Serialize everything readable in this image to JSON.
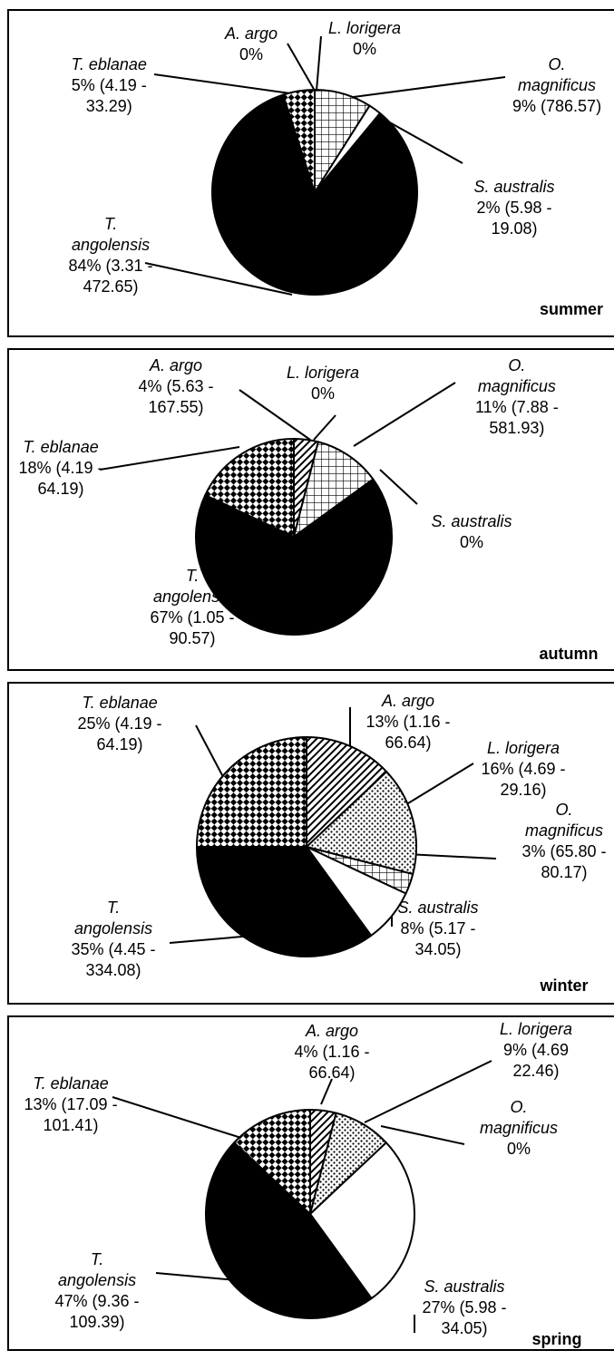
{
  "chart_data": [
    {
      "type": "pie",
      "panel_label": "summer",
      "slices": [
        {
          "name_lines": [
            "A. argo"
          ],
          "value_lines": [
            "0%"
          ],
          "percent": 0,
          "pattern": "diag"
        },
        {
          "name_lines": [
            "L. lorigera"
          ],
          "value_lines": [
            "0%"
          ],
          "percent": 0,
          "pattern": "dots"
        },
        {
          "name_lines": [
            "O.",
            "magnificus"
          ],
          "value_lines": [
            "9% (786.57)"
          ],
          "percent": 9,
          "pattern": "grid"
        },
        {
          "name_lines": [
            "S. australis"
          ],
          "value_lines": [
            "2% (5.98 -",
            "19.08)"
          ],
          "percent": 2,
          "pattern": "white"
        },
        {
          "name_lines": [
            "T.",
            "angolensis"
          ],
          "value_lines": [
            "84% (3.31 -",
            "472.65)"
          ],
          "percent": 84,
          "pattern": "black"
        },
        {
          "name_lines": [
            "T. eblanae"
          ],
          "value_lines": [
            "5% (4.19 -",
            "33.29)"
          ],
          "percent": 5,
          "pattern": "checker"
        }
      ]
    },
    {
      "type": "pie",
      "panel_label": "autumn",
      "slices": [
        {
          "name_lines": [
            "A. argo"
          ],
          "value_lines": [
            "4% (5.63 -",
            "167.55)"
          ],
          "percent": 4,
          "pattern": "diag"
        },
        {
          "name_lines": [
            "L. lorigera"
          ],
          "value_lines": [
            "0%"
          ],
          "percent": 0,
          "pattern": "dots"
        },
        {
          "name_lines": [
            "O.",
            "magnificus"
          ],
          "value_lines": [
            "11% (7.88 -",
            "581.93)"
          ],
          "percent": 11,
          "pattern": "grid"
        },
        {
          "name_lines": [
            "S. australis"
          ],
          "value_lines": [
            "0%"
          ],
          "percent": 0,
          "pattern": "white"
        },
        {
          "name_lines": [
            "T.",
            "angolensis"
          ],
          "value_lines": [
            "67% (1.05 -",
            "90.57)"
          ],
          "percent": 67,
          "pattern": "black"
        },
        {
          "name_lines": [
            "T. eblanae"
          ],
          "value_lines": [
            "18% (4.19 -",
            "64.19)"
          ],
          "percent": 18,
          "pattern": "checker"
        }
      ]
    },
    {
      "type": "pie",
      "panel_label": "winter",
      "slices": [
        {
          "name_lines": [
            "A. argo"
          ],
          "value_lines": [
            "13% (1.16 -",
            "66.64)"
          ],
          "percent": 13,
          "pattern": "diag"
        },
        {
          "name_lines": [
            "L. lorigera"
          ],
          "value_lines": [
            "16% (4.69 -",
            "29.16)"
          ],
          "percent": 16,
          "pattern": "dots"
        },
        {
          "name_lines": [
            "O.",
            "magnificus"
          ],
          "value_lines": [
            "3% (65.80 -",
            "80.17)"
          ],
          "percent": 3,
          "pattern": "grid"
        },
        {
          "name_lines": [
            "S. australis"
          ],
          "value_lines": [
            "8% (5.17 -",
            "34.05)"
          ],
          "percent": 8,
          "pattern": "white"
        },
        {
          "name_lines": [
            "T.",
            "angolensis"
          ],
          "value_lines": [
            "35% (4.45 -",
            "334.08)"
          ],
          "percent": 35,
          "pattern": "black"
        },
        {
          "name_lines": [
            "T. eblanae"
          ],
          "value_lines": [
            "25% (4.19 -",
            "64.19)"
          ],
          "percent": 25,
          "pattern": "checker"
        }
      ]
    },
    {
      "type": "pie",
      "panel_label": "spring",
      "slices": [
        {
          "name_lines": [
            "A. argo"
          ],
          "value_lines": [
            "4% (1.16 -",
            "66.64)"
          ],
          "percent": 4,
          "pattern": "diag"
        },
        {
          "name_lines": [
            "L. lorigera"
          ],
          "value_lines": [
            "9% (4.69",
            "22.46)"
          ],
          "percent": 9,
          "pattern": "dots"
        },
        {
          "name_lines": [
            "O.",
            "magnificus"
          ],
          "value_lines": [
            "0%"
          ],
          "percent": 0,
          "pattern": "grid"
        },
        {
          "name_lines": [
            "S. australis"
          ],
          "value_lines": [
            "27% (5.98 -",
            "34.05)"
          ],
          "percent": 27,
          "pattern": "white"
        },
        {
          "name_lines": [
            "T.",
            "angolensis"
          ],
          "value_lines": [
            "47% (9.36 -",
            "109.39)"
          ],
          "percent": 47,
          "pattern": "black"
        },
        {
          "name_lines": [
            "T. eblanae"
          ],
          "value_lines": [
            "13% (17.09 -",
            "101.41)"
          ],
          "percent": 13,
          "pattern": "checker"
        }
      ]
    }
  ]
}
